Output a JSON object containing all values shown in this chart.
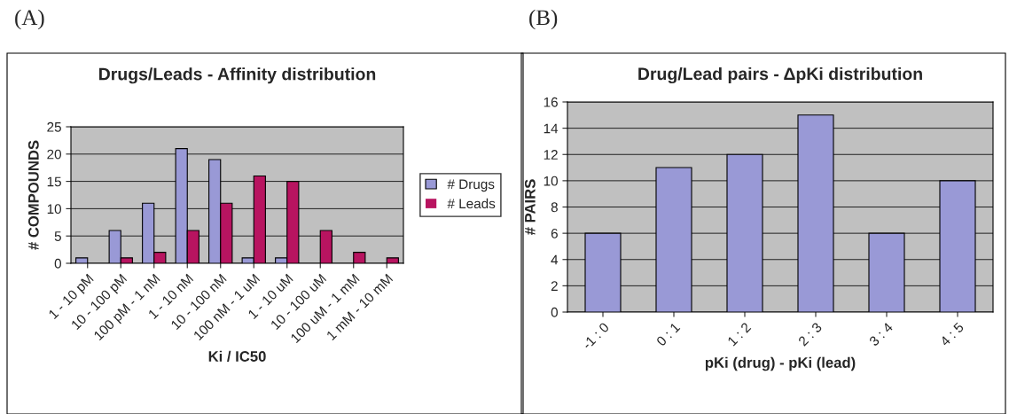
{
  "chart_data": [
    {
      "type": "bar",
      "title": "Drugs/Leads - Affinity distribution",
      "xlabel": "Ki / IC50",
      "ylabel": "# COMPOUNDS",
      "annotations": [
        "(A)"
      ],
      "categories": [
        "1 - 10 pM",
        "10 - 100 pM",
        "100 pM - 1 nM",
        "1 - 10 nM",
        "10 - 100 nM",
        "100 nM - 1 uM",
        "1 - 10 uM",
        "10 - 100 uM",
        "100 uM - 1 mM",
        "1 mM - 10 mM"
      ],
      "series": [
        {
          "name": "# Drugs",
          "color": "#9999d6",
          "values": [
            1,
            6,
            11,
            21,
            19,
            1,
            1,
            0,
            0,
            0
          ]
        },
        {
          "name": "# Leads",
          "color": "#b81460",
          "values": [
            0,
            1,
            2,
            6,
            11,
            16,
            15,
            6,
            2,
            1
          ]
        }
      ],
      "ylim": [
        0,
        25
      ],
      "yticks": [
        0,
        5,
        10,
        15,
        20,
        25
      ],
      "grid": "y",
      "legend": "right"
    },
    {
      "type": "bar",
      "title": "Drug/Lead pairs - ΔpKi distribution",
      "xlabel": "pKi (drug) - pKi (lead)",
      "ylabel": "# PAIRS",
      "annotations": [
        "(B)"
      ],
      "categories": [
        "-1 : 0",
        "0 : 1",
        "1 : 2",
        "2 : 3",
        "3 : 4",
        "4 : 5"
      ],
      "series": [
        {
          "color": "#9999d6",
          "values": [
            6,
            11,
            12,
            15,
            6,
            10
          ]
        }
      ],
      "ylim": [
        0,
        16
      ],
      "yticks": [
        0,
        2,
        4,
        6,
        8,
        10,
        12,
        14,
        16
      ],
      "grid": "y",
      "legend": false
    }
  ]
}
